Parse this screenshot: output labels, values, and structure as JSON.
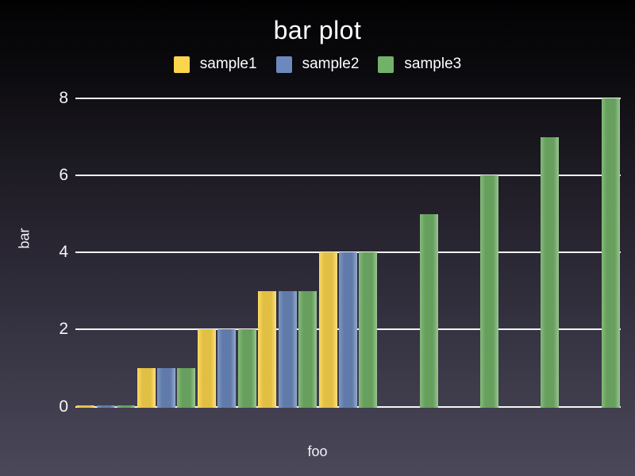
{
  "chart_data": {
    "type": "bar",
    "title": "bar plot",
    "xlabel": "foo",
    "ylabel": "bar",
    "x": [
      0,
      1,
      2,
      3,
      4,
      5,
      6,
      7,
      8
    ],
    "series": [
      {
        "name": "sample1",
        "color": "#FBD54C",
        "values": [
          0,
          1,
          2,
          3,
          4,
          null,
          null,
          null,
          null
        ]
      },
      {
        "name": "sample2",
        "color": "#6B89BC",
        "values": [
          0,
          1,
          2,
          3,
          4,
          null,
          null,
          null,
          null
        ]
      },
      {
        "name": "sample3",
        "color": "#73B168",
        "values": [
          0,
          1,
          2,
          3,
          4,
          5,
          6,
          7,
          8
        ]
      }
    ],
    "ylim": [
      0,
      8
    ],
    "yticks": [
      0,
      2,
      4,
      6,
      8
    ],
    "grid": true,
    "legend_position": "top",
    "x_tick_labels_visible": false,
    "background": {
      "top": "#020203",
      "bottom": "#4B4859"
    },
    "text_color": "#FFFFFF",
    "gridline_color": "#FFFFFF"
  }
}
